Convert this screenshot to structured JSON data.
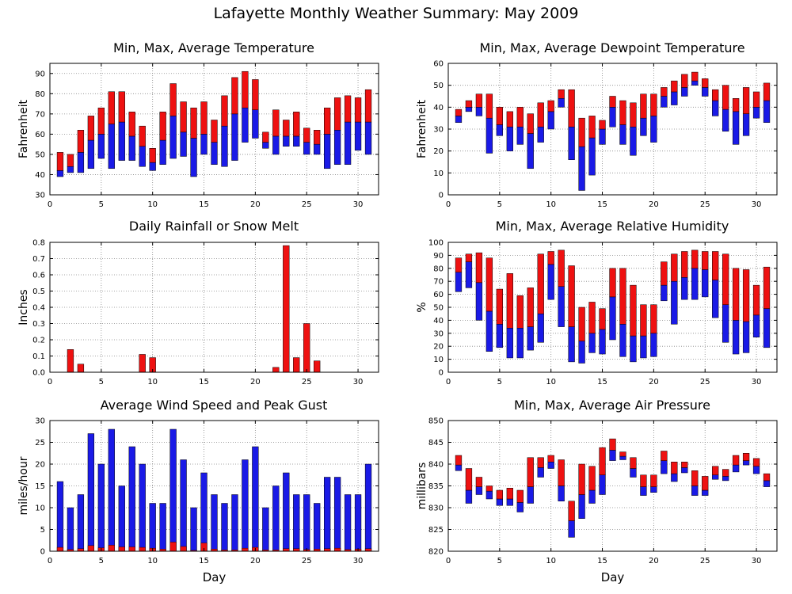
{
  "title": "Lafayette Monthly Weather Summary: May 2009",
  "colors": {
    "upper": "#ee1111",
    "lower": "#1a1ae6",
    "grid": "#888888",
    "frame": "#000000"
  },
  "chart_data": [
    {
      "id": "temperature",
      "type": "bar",
      "title": "Min, Max, Average Temperature",
      "xlabel": "",
      "ylabel": "Fahrenheit",
      "xlim": [
        0,
        32
      ],
      "xticks": [
        0,
        5,
        10,
        15,
        20,
        25,
        30
      ],
      "ylim": [
        30,
        95
      ],
      "yticks": [
        30,
        40,
        50,
        60,
        70,
        80,
        90
      ],
      "grid": true,
      "days": [
        1,
        2,
        3,
        4,
        5,
        6,
        7,
        8,
        9,
        10,
        11,
        12,
        13,
        14,
        15,
        16,
        17,
        18,
        19,
        20,
        21,
        22,
        23,
        24,
        25,
        26,
        27,
        28,
        29,
        30,
        31
      ],
      "min": [
        39,
        41,
        41,
        43,
        48,
        43,
        47,
        47,
        44,
        42,
        45,
        48,
        49,
        39,
        50,
        45,
        44,
        47,
        56,
        58,
        53,
        50,
        54,
        54,
        50,
        50,
        43,
        45,
        45,
        52,
        50
      ],
      "avg": [
        42,
        44,
        51,
        57,
        60,
        65,
        66,
        59,
        54,
        46,
        57,
        69,
        61,
        58,
        60,
        56,
        64,
        70,
        73,
        72,
        56,
        59,
        59,
        59,
        56,
        55,
        60,
        62,
        66,
        66,
        66
      ],
      "max": [
        51,
        50,
        62,
        69,
        73,
        81,
        81,
        71,
        64,
        53,
        71,
        85,
        76,
        73,
        76,
        67,
        79,
        88,
        91,
        87,
        61,
        72,
        67,
        71,
        63,
        62,
        73,
        78,
        79,
        78,
        82
      ]
    },
    {
      "id": "dewpoint",
      "type": "bar",
      "title": "Min, Max, Average Dewpoint Temperature",
      "xlabel": "",
      "ylabel": "Fahrenheit",
      "xlim": [
        0,
        32
      ],
      "xticks": [
        0,
        5,
        10,
        15,
        20,
        25,
        30
      ],
      "ylim": [
        0,
        60
      ],
      "yticks": [
        0,
        10,
        20,
        30,
        40,
        50,
        60
      ],
      "grid": true,
      "days": [
        1,
        2,
        3,
        4,
        5,
        6,
        7,
        8,
        9,
        10,
        11,
        12,
        13,
        14,
        15,
        16,
        17,
        18,
        19,
        20,
        21,
        22,
        23,
        24,
        25,
        26,
        27,
        28,
        29,
        30,
        31
      ],
      "min": [
        33,
        38,
        36,
        19,
        27,
        20,
        23,
        12,
        24,
        30,
        40,
        16,
        2,
        9,
        23,
        31,
        23,
        18,
        27,
        24,
        40,
        41,
        45,
        50,
        45,
        36,
        29,
        23,
        27,
        35,
        33
      ],
      "avg": [
        36,
        40,
        40,
        35,
        32,
        31,
        31,
        28,
        31,
        38,
        44,
        31,
        22,
        26,
        30,
        40,
        32,
        31,
        35,
        36,
        45,
        47,
        49,
        52,
        49,
        43,
        39,
        38,
        37,
        40,
        43
      ],
      "max": [
        39,
        43,
        46,
        46,
        40,
        38,
        40,
        37,
        42,
        43,
        48,
        48,
        35,
        36,
        34,
        45,
        43,
        42,
        46,
        46,
        49,
        52,
        55,
        56,
        53,
        48,
        50,
        44,
        49,
        47,
        51
      ]
    },
    {
      "id": "rainfall",
      "type": "bar",
      "title": "Daily Rainfall or Snow Melt",
      "xlabel": "",
      "ylabel": "Inches",
      "xlim": [
        0,
        32
      ],
      "xticks": [
        0,
        5,
        10,
        15,
        20,
        25,
        30
      ],
      "ylim": [
        0,
        0.8
      ],
      "yticks": [
        0,
        0.1,
        0.2,
        0.3,
        0.4,
        0.5,
        0.6,
        0.7,
        0.8
      ],
      "ytick_labels": [
        "0.0",
        "0.1",
        "0.2",
        "0.3",
        "0.4",
        "0.5",
        "0.6",
        "0.7",
        "0.8"
      ],
      "grid": true,
      "days": [
        1,
        2,
        3,
        4,
        5,
        6,
        7,
        8,
        9,
        10,
        11,
        12,
        13,
        14,
        15,
        16,
        17,
        18,
        19,
        20,
        21,
        22,
        23,
        24,
        25,
        26,
        27,
        28,
        29,
        30,
        31
      ],
      "values": [
        0,
        0.14,
        0.05,
        0,
        0,
        0,
        0,
        0,
        0.11,
        0.09,
        0,
        0,
        0,
        0,
        0,
        0,
        0,
        0,
        0,
        0,
        0,
        0.03,
        0.78,
        0.09,
        0.3,
        0.07,
        0,
        0,
        0,
        0,
        0
      ]
    },
    {
      "id": "humidity",
      "type": "bar",
      "title": "Min, Max, Average Relative Humidity",
      "xlabel": "",
      "ylabel": "%",
      "xlim": [
        0,
        32
      ],
      "xticks": [
        0,
        5,
        10,
        15,
        20,
        25,
        30
      ],
      "ylim": [
        0,
        100
      ],
      "yticks": [
        0,
        10,
        20,
        30,
        40,
        50,
        60,
        70,
        80,
        90,
        100
      ],
      "grid": true,
      "days": [
        1,
        2,
        3,
        4,
        5,
        6,
        7,
        8,
        9,
        10,
        11,
        12,
        13,
        14,
        15,
        16,
        17,
        18,
        19,
        20,
        21,
        22,
        23,
        24,
        25,
        26,
        27,
        28,
        29,
        30,
        31
      ],
      "min": [
        62,
        65,
        40,
        16,
        19,
        11,
        11,
        17,
        23,
        56,
        35,
        8,
        7,
        15,
        14,
        25,
        12,
        8,
        11,
        12,
        55,
        37,
        56,
        56,
        58,
        42,
        23,
        14,
        15,
        27,
        19
      ],
      "avg": [
        77,
        85,
        69,
        47,
        37,
        34,
        34,
        35,
        45,
        83,
        66,
        35,
        24,
        30,
        33,
        58,
        37,
        28,
        28,
        30,
        67,
        70,
        73,
        80,
        79,
        71,
        52,
        40,
        39,
        44,
        49
      ],
      "max": [
        88,
        91,
        92,
        88,
        64,
        76,
        59,
        65,
        91,
        93,
        94,
        82,
        50,
        54,
        49,
        80,
        80,
        67,
        52,
        52,
        85,
        91,
        93,
        94,
        93,
        93,
        91,
        80,
        79,
        67,
        81
      ]
    },
    {
      "id": "wind",
      "type": "bar",
      "title": "Average Wind Speed and Peak Gust",
      "xlabel": "Day",
      "ylabel": "miles/hour",
      "xlim": [
        0,
        32
      ],
      "xticks": [
        0,
        5,
        10,
        15,
        20,
        25,
        30
      ],
      "ylim": [
        0,
        30
      ],
      "yticks": [
        0,
        5,
        10,
        15,
        20,
        25,
        30
      ],
      "grid": true,
      "days": [
        1,
        2,
        3,
        4,
        5,
        6,
        7,
        8,
        9,
        10,
        11,
        12,
        13,
        14,
        15,
        16,
        17,
        18,
        19,
        20,
        21,
        22,
        23,
        24,
        25,
        26,
        27,
        28,
        29,
        30,
        31
      ],
      "avg_speed": [
        0.9,
        0.4,
        0.6,
        1.3,
        0.8,
        1.4,
        1.0,
        1.0,
        0.9,
        0.7,
        0.5,
        2.1,
        1.1,
        0.2,
        1.9,
        0.5,
        0.3,
        0.3,
        0.7,
        0.9,
        0.3,
        0.3,
        0.6,
        0.6,
        0.4,
        0.5,
        0.6,
        0.7,
        0.4,
        0.5,
        0.6
      ],
      "peak_gust": [
        16,
        10,
        13,
        27,
        20,
        28,
        15,
        24,
        20,
        11,
        11,
        28,
        21,
        10,
        18,
        13,
        11,
        13,
        21,
        24,
        10,
        15,
        18,
        13,
        13,
        11,
        17,
        17,
        13,
        13,
        20
      ]
    },
    {
      "id": "pressure",
      "type": "bar",
      "title": "Min, Max, Average Air Pressure",
      "xlabel": "Day",
      "ylabel": "millibars",
      "xlim": [
        0,
        32
      ],
      "xticks": [
        0,
        5,
        10,
        15,
        20,
        25,
        30
      ],
      "ylim": [
        820,
        850
      ],
      "yticks": [
        820,
        825,
        830,
        835,
        840,
        845,
        850
      ],
      "grid": true,
      "days": [
        1,
        2,
        3,
        4,
        5,
        6,
        7,
        8,
        9,
        10,
        11,
        12,
        13,
        14,
        15,
        16,
        17,
        18,
        19,
        20,
        21,
        22,
        23,
        24,
        25,
        26,
        27,
        28,
        29,
        30,
        31
      ],
      "min": [
        838.5,
        831.0,
        833.0,
        832.0,
        830.5,
        830.5,
        829.0,
        831.0,
        837.0,
        839.0,
        831.5,
        823.2,
        827.5,
        831.0,
        833.0,
        840.8,
        841.0,
        837.0,
        832.8,
        833.5,
        837.8,
        836.0,
        838.0,
        832.8,
        832.8,
        836.5,
        836.2,
        838.2,
        839.8,
        837.8,
        834.8
      ],
      "avg": [
        839.8,
        834.0,
        834.8,
        833.8,
        832.0,
        832.0,
        831.2,
        834.8,
        839.2,
        840.5,
        835.0,
        827.0,
        833.0,
        834.0,
        837.5,
        843.2,
        841.8,
        839.0,
        834.8,
        834.8,
        840.8,
        837.8,
        839.2,
        835.0,
        834.0,
        837.5,
        837.2,
        839.8,
        840.8,
        839.5,
        836.2
      ],
      "max": [
        842.0,
        839.0,
        837.0,
        835.0,
        834.0,
        834.5,
        834.0,
        841.5,
        841.5,
        842.0,
        841.0,
        831.5,
        840.0,
        839.5,
        843.8,
        845.8,
        842.8,
        841.5,
        837.5,
        837.5,
        843.0,
        840.5,
        840.5,
        838.5,
        837.2,
        839.5,
        838.8,
        842.0,
        842.5,
        841.3,
        837.8
      ]
    }
  ]
}
